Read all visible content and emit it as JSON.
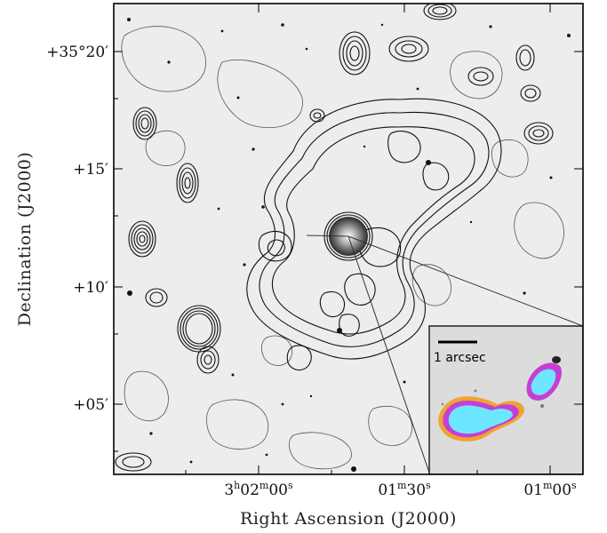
{
  "axes": {
    "x_title": "Right Ascension (J2000)",
    "y_title": "Declination (J2000)",
    "x_ticks": [
      {
        "id": "ra-1",
        "h": "3",
        "hs": "h",
        "m": "02",
        "ms": "m",
        "s": "00",
        "ss": "s"
      },
      {
        "id": "ra-2",
        "h": "",
        "hs": "",
        "m": "01",
        "ms": "m",
        "s": "30",
        "ss": "s"
      },
      {
        "id": "ra-3",
        "h": "",
        "hs": "",
        "m": "01",
        "ms": "m",
        "s": "00",
        "ss": "s"
      }
    ],
    "y_ticks": [
      "+35°20′",
      "+15′",
      "+10′",
      "+05′"
    ]
  },
  "inset": {
    "scale_label": "1 arcsec"
  },
  "colors": {
    "contour_thin": "#555555",
    "contour_dark": "#111111",
    "inset_cyan": "#6fe6ff",
    "inset_magenta": "#c43fd6",
    "inset_orange": "#f0a330",
    "frame": "#000000"
  }
}
